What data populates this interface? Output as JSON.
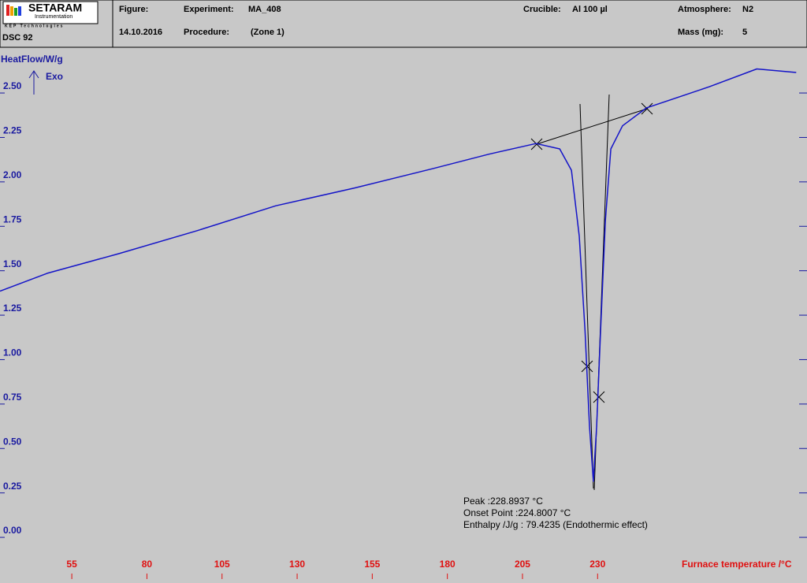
{
  "header": {
    "logo": "SETARAM",
    "logo_sub": "Instrumentation",
    "logo_sub2": "KEP Technologies",
    "instrument": "DSC 92",
    "figure_label": "Figure:",
    "date": "14.10.2016",
    "experiment_label": "Experiment:",
    "experiment": "MA_408",
    "procedure_label": "Procedure:",
    "procedure": "(Zone 1)",
    "crucible_label": "Crucible:",
    "crucible": "Al 100 µl",
    "atmosphere_label": "Atmosphere:",
    "atmosphere": "N2",
    "mass_label": "Mass (mg):",
    "mass": "5"
  },
  "chart_data": {
    "type": "line",
    "ylabel": "HeatFlow/W/g",
    "exo_label": "Exo",
    "xlabel": "Furnace temperature /°C",
    "xlim": [
      31.1,
      299.7
    ],
    "ylim": [
      -0.115,
      2.713
    ],
    "xticks": [
      55,
      80,
      105,
      130,
      155,
      180,
      205,
      230
    ],
    "yticks": [
      {
        "value": 0,
        "label": "0.00"
      },
      {
        "value": 0.25,
        "label": "0.25"
      },
      {
        "value": 0.5,
        "label": "0.50"
      },
      {
        "value": 0.75,
        "label": "0.75"
      },
      {
        "value": 1,
        "label": "1.00"
      },
      {
        "value": 1.25,
        "label": "1.25"
      },
      {
        "value": 1.5,
        "label": "1.50"
      },
      {
        "value": 1.75,
        "label": "1.75"
      },
      {
        "value": 2,
        "label": "2.00"
      },
      {
        "value": 2.25,
        "label": "2.25"
      },
      {
        "value": 2.5,
        "label": "2.50"
      }
    ],
    "series": [
      {
        "name": "HeatFlow",
        "color": "#1414c8",
        "x": [
          31.1,
          46.8,
          70.5,
          96.7,
          122.9,
          149.1,
          175.4,
          193.7,
          209.5,
          217.4,
          221.3,
          223.9,
          225.8,
          227.3,
          228.6,
          229.7,
          231.0,
          232.6,
          234.4,
          238.3,
          246.2,
          267.2,
          283.0,
          296.1
        ],
        "values": [
          1.35,
          1.45,
          1.56,
          1.69,
          1.83,
          1.93,
          2.04,
          2.12,
          2.18,
          2.15,
          2.03,
          1.66,
          1.13,
          0.59,
          0.28,
          0.59,
          1.13,
          1.75,
          2.15,
          2.28,
          2.38,
          2.5,
          2.6,
          2.58
        ]
      }
    ],
    "annotations": [
      "Peak :228.8937 °C",
      "Onset Point :224.8007 °C",
      "Enthalpy /J/g : 79.4235 (Endothermic effect)"
    ]
  }
}
